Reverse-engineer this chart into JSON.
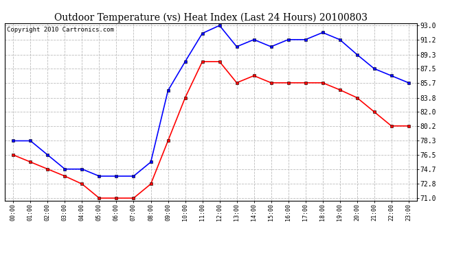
{
  "title": "Outdoor Temperature (vs) Heat Index (Last 24 Hours) 20100803",
  "copyright": "Copyright 2010 Cartronics.com",
  "hours": [
    "00:00",
    "01:00",
    "02:00",
    "03:00",
    "04:00",
    "05:00",
    "06:00",
    "07:00",
    "08:00",
    "09:00",
    "10:00",
    "11:00",
    "12:00",
    "13:00",
    "14:00",
    "15:00",
    "16:00",
    "17:00",
    "18:00",
    "19:00",
    "20:00",
    "21:00",
    "22:00",
    "23:00"
  ],
  "blue_temp": [
    78.3,
    78.3,
    76.5,
    74.7,
    74.7,
    73.8,
    73.8,
    73.8,
    75.6,
    84.7,
    88.4,
    92.0,
    93.0,
    90.3,
    91.2,
    90.3,
    91.2,
    91.2,
    92.1,
    91.2,
    89.3,
    87.5,
    86.6,
    85.7
  ],
  "red_heat": [
    76.5,
    75.6,
    74.7,
    73.8,
    72.8,
    71.0,
    71.0,
    71.0,
    72.8,
    78.3,
    83.8,
    88.4,
    88.4,
    85.7,
    86.6,
    85.7,
    85.7,
    85.7,
    85.7,
    84.8,
    83.8,
    82.0,
    80.2,
    80.2
  ],
  "ylim_min": 71.0,
  "ylim_max": 93.0,
  "yticks": [
    71.0,
    72.8,
    74.7,
    76.5,
    78.3,
    80.2,
    82.0,
    83.8,
    85.7,
    87.5,
    89.3,
    91.2,
    93.0
  ],
  "blue_color": "#0000ff",
  "red_color": "#ff0000",
  "background_color": "#ffffff",
  "grid_color": "#bbbbbb",
  "title_fontsize": 10,
  "copyright_fontsize": 6.5
}
